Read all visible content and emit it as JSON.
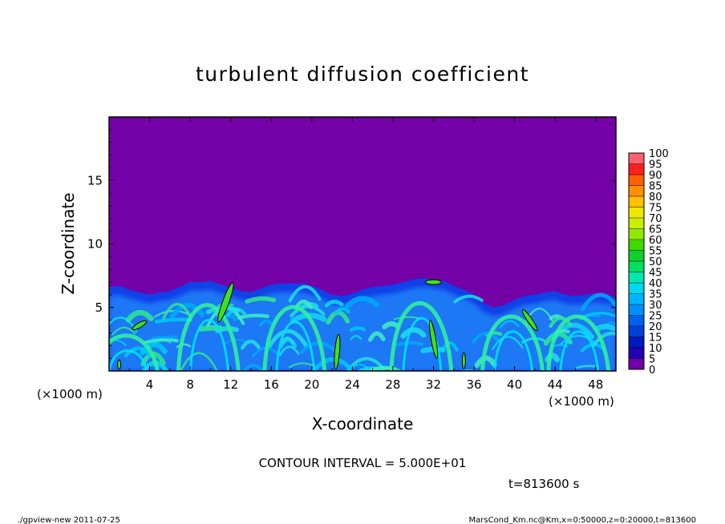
{
  "chart_data": {
    "type": "heatmap",
    "title": "turbulent diffusion coefficient",
    "xlabel": "X-coordinate",
    "ylabel": "Z-coordinate",
    "x_unit": "(×1000 m)",
    "y_unit": "(×1000 m)",
    "xlim": [
      0,
      50
    ],
    "ylim": [
      0,
      20
    ],
    "x_ticks": [
      4,
      8,
      12,
      16,
      20,
      24,
      28,
      32,
      36,
      40,
      44,
      48
    ],
    "y_ticks": [
      5,
      10,
      15
    ],
    "colorbar_levels": [
      0,
      5,
      10,
      15,
      20,
      25,
      30,
      35,
      40,
      45,
      50,
      55,
      60,
      65,
      70,
      75,
      80,
      85,
      90,
      95,
      100
    ],
    "colorbar_colors": [
      "#7400a8",
      "#2200b4",
      "#0018c0",
      "#0040d8",
      "#0060f0",
      "#0090ff",
      "#00b4ff",
      "#00d8f0",
      "#00e8b0",
      "#00e060",
      "#10d030",
      "#40d800",
      "#90e800",
      "#c8f000",
      "#f0e800",
      "#ffc000",
      "#ff9000",
      "#ff6000",
      "#ff2020",
      "#ff6070"
    ],
    "background_color": "#7400a8",
    "contour_interval_text": "CONTOUR INTERVAL = 5.000E+01",
    "contour_level": 50,
    "time_label": "t=813600 s",
    "boundary_layer_top": [
      [
        0,
        6.6
      ],
      [
        1,
        6.7
      ],
      [
        2,
        6.4
      ],
      [
        3,
        6.2
      ],
      [
        4,
        6.0
      ],
      [
        5,
        6.2
      ],
      [
        6,
        6.3
      ],
      [
        7,
        6.6
      ],
      [
        8,
        7.0
      ],
      [
        9,
        7.0
      ],
      [
        10,
        7.1
      ],
      [
        11,
        6.8
      ],
      [
        12,
        6.6
      ],
      [
        13,
        6.3
      ],
      [
        14,
        6.2
      ],
      [
        15,
        6.5
      ],
      [
        16,
        6.8
      ],
      [
        17,
        6.9
      ],
      [
        18,
        6.9
      ],
      [
        19,
        6.9
      ],
      [
        20,
        6.7
      ],
      [
        21,
        6.4
      ],
      [
        22,
        6.0
      ],
      [
        23,
        5.9
      ],
      [
        24,
        6.1
      ],
      [
        25,
        6.4
      ],
      [
        26,
        6.6
      ],
      [
        27,
        6.7
      ],
      [
        28,
        6.8
      ],
      [
        29,
        7.0
      ],
      [
        30,
        7.2
      ],
      [
        31,
        7.3
      ],
      [
        32,
        7.2
      ],
      [
        33,
        7.1
      ],
      [
        34,
        6.7
      ],
      [
        35,
        6.4
      ],
      [
        36,
        6.0
      ],
      [
        37,
        5.3
      ],
      [
        38,
        5.0
      ],
      [
        39,
        5.2
      ],
      [
        40,
        5.6
      ],
      [
        41,
        5.9
      ],
      [
        42,
        6.0
      ],
      [
        43,
        6.2
      ],
      [
        44,
        6.3
      ],
      [
        45,
        6.0
      ],
      [
        46,
        5.9
      ],
      [
        47,
        6.0
      ],
      [
        48,
        6.1
      ],
      [
        49,
        6.0
      ],
      [
        50,
        5.8
      ]
    ]
  },
  "footer": {
    "left": "./gpview-new   2011-07-25",
    "right": "MarsCond_Km.nc@Km,x=0:50000,z=0:20000,t=813600"
  }
}
